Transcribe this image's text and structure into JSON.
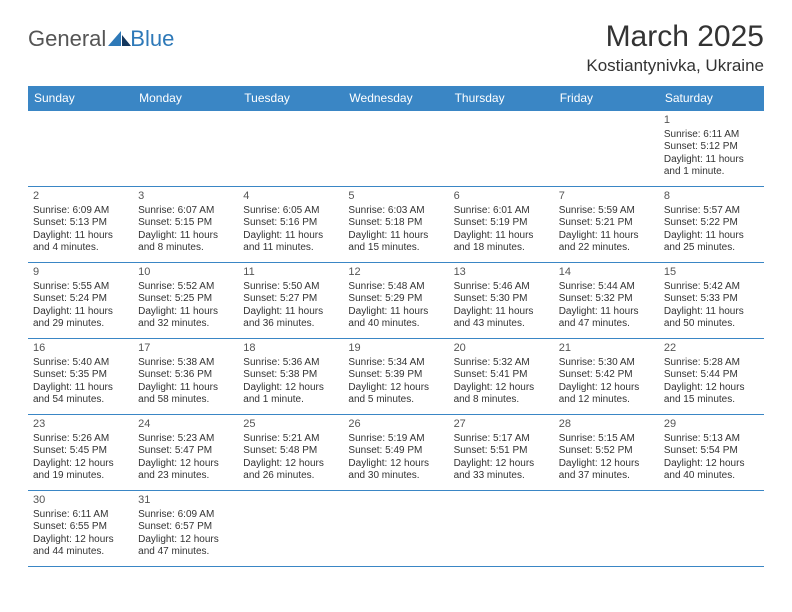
{
  "brand": {
    "general": "General",
    "blue": "Blue"
  },
  "title": "March 2025",
  "location": "Kostiantynivka, Ukraine",
  "colors": {
    "header_bg": "#3a86c5",
    "header_text": "#ffffff",
    "border": "#3a86c5",
    "text": "#333333",
    "logo_gray": "#555555",
    "logo_blue": "#2e79b8"
  },
  "days_of_week": [
    "Sunday",
    "Monday",
    "Tuesday",
    "Wednesday",
    "Thursday",
    "Friday",
    "Saturday"
  ],
  "weeks": [
    [
      null,
      null,
      null,
      null,
      null,
      null,
      {
        "n": "1",
        "sunrise": "Sunrise: 6:11 AM",
        "sunset": "Sunset: 5:12 PM",
        "daylight": "Daylight: 11 hours and 1 minute."
      }
    ],
    [
      {
        "n": "2",
        "sunrise": "Sunrise: 6:09 AM",
        "sunset": "Sunset: 5:13 PM",
        "daylight": "Daylight: 11 hours and 4 minutes."
      },
      {
        "n": "3",
        "sunrise": "Sunrise: 6:07 AM",
        "sunset": "Sunset: 5:15 PM",
        "daylight": "Daylight: 11 hours and 8 minutes."
      },
      {
        "n": "4",
        "sunrise": "Sunrise: 6:05 AM",
        "sunset": "Sunset: 5:16 PM",
        "daylight": "Daylight: 11 hours and 11 minutes."
      },
      {
        "n": "5",
        "sunrise": "Sunrise: 6:03 AM",
        "sunset": "Sunset: 5:18 PM",
        "daylight": "Daylight: 11 hours and 15 minutes."
      },
      {
        "n": "6",
        "sunrise": "Sunrise: 6:01 AM",
        "sunset": "Sunset: 5:19 PM",
        "daylight": "Daylight: 11 hours and 18 minutes."
      },
      {
        "n": "7",
        "sunrise": "Sunrise: 5:59 AM",
        "sunset": "Sunset: 5:21 PM",
        "daylight": "Daylight: 11 hours and 22 minutes."
      },
      {
        "n": "8",
        "sunrise": "Sunrise: 5:57 AM",
        "sunset": "Sunset: 5:22 PM",
        "daylight": "Daylight: 11 hours and 25 minutes."
      }
    ],
    [
      {
        "n": "9",
        "sunrise": "Sunrise: 5:55 AM",
        "sunset": "Sunset: 5:24 PM",
        "daylight": "Daylight: 11 hours and 29 minutes."
      },
      {
        "n": "10",
        "sunrise": "Sunrise: 5:52 AM",
        "sunset": "Sunset: 5:25 PM",
        "daylight": "Daylight: 11 hours and 32 minutes."
      },
      {
        "n": "11",
        "sunrise": "Sunrise: 5:50 AM",
        "sunset": "Sunset: 5:27 PM",
        "daylight": "Daylight: 11 hours and 36 minutes."
      },
      {
        "n": "12",
        "sunrise": "Sunrise: 5:48 AM",
        "sunset": "Sunset: 5:29 PM",
        "daylight": "Daylight: 11 hours and 40 minutes."
      },
      {
        "n": "13",
        "sunrise": "Sunrise: 5:46 AM",
        "sunset": "Sunset: 5:30 PM",
        "daylight": "Daylight: 11 hours and 43 minutes."
      },
      {
        "n": "14",
        "sunrise": "Sunrise: 5:44 AM",
        "sunset": "Sunset: 5:32 PM",
        "daylight": "Daylight: 11 hours and 47 minutes."
      },
      {
        "n": "15",
        "sunrise": "Sunrise: 5:42 AM",
        "sunset": "Sunset: 5:33 PM",
        "daylight": "Daylight: 11 hours and 50 minutes."
      }
    ],
    [
      {
        "n": "16",
        "sunrise": "Sunrise: 5:40 AM",
        "sunset": "Sunset: 5:35 PM",
        "daylight": "Daylight: 11 hours and 54 minutes."
      },
      {
        "n": "17",
        "sunrise": "Sunrise: 5:38 AM",
        "sunset": "Sunset: 5:36 PM",
        "daylight": "Daylight: 11 hours and 58 minutes."
      },
      {
        "n": "18",
        "sunrise": "Sunrise: 5:36 AM",
        "sunset": "Sunset: 5:38 PM",
        "daylight": "Daylight: 12 hours and 1 minute."
      },
      {
        "n": "19",
        "sunrise": "Sunrise: 5:34 AM",
        "sunset": "Sunset: 5:39 PM",
        "daylight": "Daylight: 12 hours and 5 minutes."
      },
      {
        "n": "20",
        "sunrise": "Sunrise: 5:32 AM",
        "sunset": "Sunset: 5:41 PM",
        "daylight": "Daylight: 12 hours and 8 minutes."
      },
      {
        "n": "21",
        "sunrise": "Sunrise: 5:30 AM",
        "sunset": "Sunset: 5:42 PM",
        "daylight": "Daylight: 12 hours and 12 minutes."
      },
      {
        "n": "22",
        "sunrise": "Sunrise: 5:28 AM",
        "sunset": "Sunset: 5:44 PM",
        "daylight": "Daylight: 12 hours and 15 minutes."
      }
    ],
    [
      {
        "n": "23",
        "sunrise": "Sunrise: 5:26 AM",
        "sunset": "Sunset: 5:45 PM",
        "daylight": "Daylight: 12 hours and 19 minutes."
      },
      {
        "n": "24",
        "sunrise": "Sunrise: 5:23 AM",
        "sunset": "Sunset: 5:47 PM",
        "daylight": "Daylight: 12 hours and 23 minutes."
      },
      {
        "n": "25",
        "sunrise": "Sunrise: 5:21 AM",
        "sunset": "Sunset: 5:48 PM",
        "daylight": "Daylight: 12 hours and 26 minutes."
      },
      {
        "n": "26",
        "sunrise": "Sunrise: 5:19 AM",
        "sunset": "Sunset: 5:49 PM",
        "daylight": "Daylight: 12 hours and 30 minutes."
      },
      {
        "n": "27",
        "sunrise": "Sunrise: 5:17 AM",
        "sunset": "Sunset: 5:51 PM",
        "daylight": "Daylight: 12 hours and 33 minutes."
      },
      {
        "n": "28",
        "sunrise": "Sunrise: 5:15 AM",
        "sunset": "Sunset: 5:52 PM",
        "daylight": "Daylight: 12 hours and 37 minutes."
      },
      {
        "n": "29",
        "sunrise": "Sunrise: 5:13 AM",
        "sunset": "Sunset: 5:54 PM",
        "daylight": "Daylight: 12 hours and 40 minutes."
      }
    ],
    [
      {
        "n": "30",
        "sunrise": "Sunrise: 6:11 AM",
        "sunset": "Sunset: 6:55 PM",
        "daylight": "Daylight: 12 hours and 44 minutes."
      },
      {
        "n": "31",
        "sunrise": "Sunrise: 6:09 AM",
        "sunset": "Sunset: 6:57 PM",
        "daylight": "Daylight: 12 hours and 47 minutes."
      },
      null,
      null,
      null,
      null,
      null
    ]
  ]
}
